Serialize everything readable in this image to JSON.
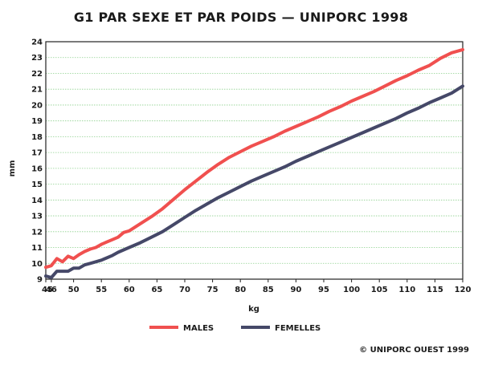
{
  "page": {
    "title": "G1 PAR SEXE ET PAR POIDS — UNIPORC 1998",
    "credit": "© UNIPORC OUEST 1999"
  },
  "chart_data": {
    "type": "line",
    "title": "G1 PAR SEXE ET PAR POIDS — UNIPORC 1998",
    "xlabel": "kg",
    "ylabel": "mm",
    "xlim": [
      45,
      120
    ],
    "ylim": [
      9,
      24
    ],
    "x_ticks": [
      45,
      46,
      50,
      55,
      60,
      65,
      70,
      75,
      80,
      85,
      90,
      95,
      100,
      105,
      110,
      115,
      120
    ],
    "y_ticks": [
      9,
      10,
      11,
      12,
      13,
      14,
      15,
      16,
      17,
      18,
      19,
      20,
      21,
      22,
      23,
      24
    ],
    "grid": true,
    "legend_position": "bottom-center",
    "series": [
      {
        "name": "MALES",
        "color": "#f0504f",
        "x": [
          45,
          46,
          47,
          48,
          49,
          50,
          51,
          52,
          53,
          54,
          55,
          56,
          57,
          58,
          59,
          60,
          62,
          64,
          66,
          68,
          70,
          72,
          74,
          76,
          78,
          80,
          82,
          84,
          86,
          88,
          90,
          92,
          94,
          96,
          98,
          100,
          102,
          104,
          106,
          108,
          110,
          112,
          114,
          116,
          118,
          120
        ],
        "values": [
          9.75,
          9.85,
          10.3,
          10.1,
          10.45,
          10.3,
          10.55,
          10.75,
          10.9,
          11.0,
          11.2,
          11.35,
          11.5,
          11.65,
          11.95,
          12.05,
          12.5,
          12.95,
          13.45,
          14.05,
          14.65,
          15.2,
          15.75,
          16.25,
          16.7,
          17.05,
          17.4,
          17.7,
          18.0,
          18.35,
          18.65,
          18.95,
          19.25,
          19.6,
          19.9,
          20.25,
          20.55,
          20.85,
          21.2,
          21.55,
          21.85,
          22.2,
          22.5,
          22.95,
          23.3,
          23.5
        ]
      },
      {
        "name": "FEMELLES",
        "color": "#454868",
        "x": [
          45,
          46,
          47,
          48,
          49,
          50,
          51,
          52,
          53,
          54,
          55,
          56,
          57,
          58,
          59,
          60,
          62,
          64,
          66,
          68,
          70,
          72,
          74,
          76,
          78,
          80,
          82,
          84,
          86,
          88,
          90,
          92,
          94,
          96,
          98,
          100,
          102,
          104,
          106,
          108,
          110,
          112,
          114,
          116,
          118,
          120
        ],
        "values": [
          9.2,
          9.1,
          9.5,
          9.5,
          9.5,
          9.7,
          9.7,
          9.9,
          10.0,
          10.1,
          10.2,
          10.35,
          10.5,
          10.7,
          10.85,
          11.0,
          11.3,
          11.65,
          12.0,
          12.45,
          12.9,
          13.35,
          13.75,
          14.15,
          14.5,
          14.85,
          15.2,
          15.5,
          15.8,
          16.1,
          16.45,
          16.75,
          17.05,
          17.35,
          17.65,
          17.95,
          18.25,
          18.55,
          18.85,
          19.15,
          19.5,
          19.8,
          20.15,
          20.45,
          20.75,
          21.2
        ]
      }
    ]
  }
}
